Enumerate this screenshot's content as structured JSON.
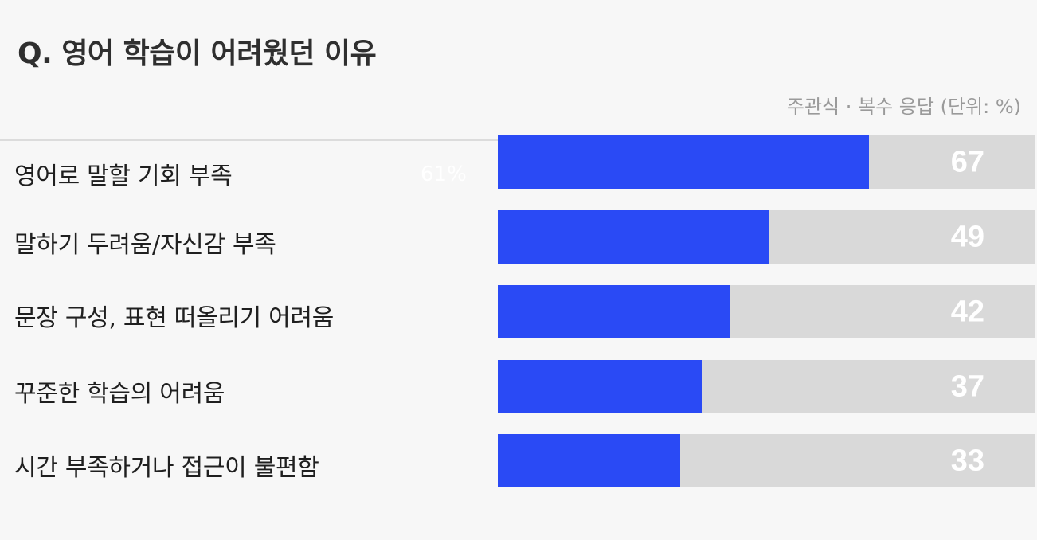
{
  "title": "Q. 영어 학습이 어려웠던 이유",
  "note": "주관식 · 복수 응답  (단위: %)",
  "stray_label": "61%",
  "colors": {
    "bar": "#2a4af5",
    "track": "#d9d9d9",
    "background": "#f7f7f7"
  },
  "chart_data": {
    "type": "bar",
    "orientation": "horizontal",
    "title": "Q. 영어 학습이 어려웠던 이유",
    "unit": "%",
    "xlim": [
      0,
      97
    ],
    "categories": [
      "영어로 말할 기회 부족",
      "말하기 두려움/자신감 부족",
      "문장 구성, 표현 떠올리기 어려움",
      "꾸준한 학습의 어려움",
      "시간 부족하거나 접근이 불편함"
    ],
    "values": [
      67,
      49,
      42,
      37,
      33
    ]
  }
}
